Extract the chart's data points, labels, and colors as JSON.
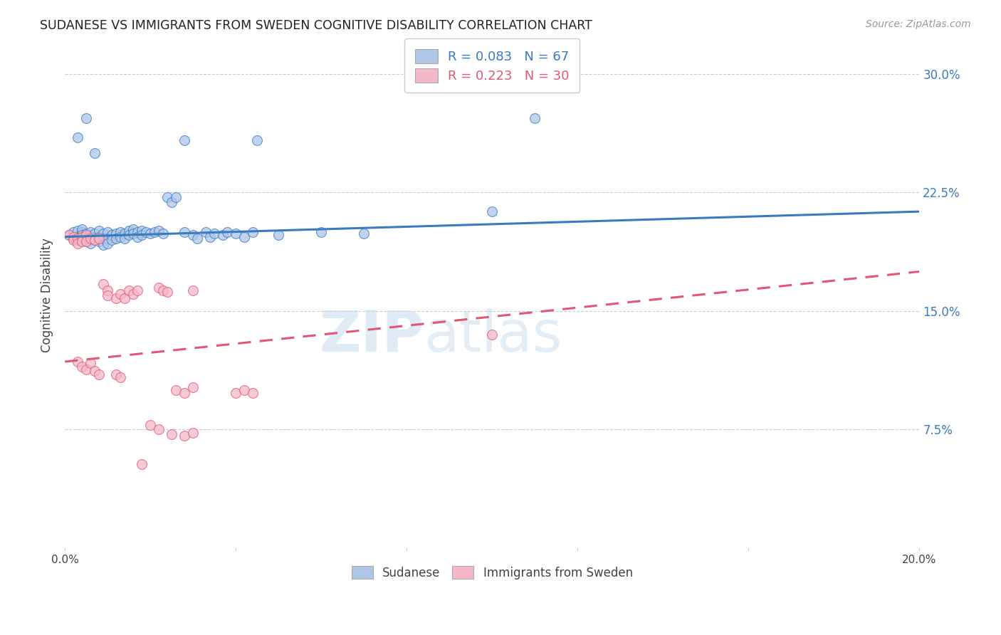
{
  "title": "SUDANESE VS IMMIGRANTS FROM SWEDEN COGNITIVE DISABILITY CORRELATION CHART",
  "source": "Source: ZipAtlas.com",
  "ylabel": "Cognitive Disability",
  "x_min": 0.0,
  "x_max": 0.2,
  "y_min": 0.0,
  "y_max": 0.32,
  "y_ticks": [
    0.075,
    0.15,
    0.225,
    0.3
  ],
  "y_tick_labels": [
    "7.5%",
    "15.0%",
    "22.5%",
    "30.0%"
  ],
  "x_ticks": [
    0.0,
    0.04,
    0.08,
    0.12,
    0.16,
    0.2
  ],
  "x_tick_labels": [
    "0.0%",
    "",
    "",
    "",
    "",
    "20.0%"
  ],
  "legend_label1": "Sudanese",
  "legend_label2": "Immigrants from Sweden",
  "color_blue": "#aec6e8",
  "color_pink": "#f5b8c8",
  "line_blue": "#3a7abf",
  "line_pink": "#e05878",
  "watermark_zip": "ZIP",
  "watermark_atlas": "atlas",
  "blue_scatter": [
    [
      0.001,
      0.198
    ],
    [
      0.002,
      0.2
    ],
    [
      0.002,
      0.196
    ],
    [
      0.003,
      0.201
    ],
    [
      0.003,
      0.197
    ],
    [
      0.003,
      0.195
    ],
    [
      0.004,
      0.2
    ],
    [
      0.004,
      0.202
    ],
    [
      0.004,
      0.198
    ],
    [
      0.005,
      0.196
    ],
    [
      0.005,
      0.199
    ],
    [
      0.005,
      0.194
    ],
    [
      0.006,
      0.2
    ],
    [
      0.006,
      0.197
    ],
    [
      0.006,
      0.193
    ],
    [
      0.007,
      0.199
    ],
    [
      0.007,
      0.195
    ],
    [
      0.008,
      0.201
    ],
    [
      0.008,
      0.197
    ],
    [
      0.008,
      0.194
    ],
    [
      0.009,
      0.199
    ],
    [
      0.009,
      0.196
    ],
    [
      0.009,
      0.192
    ],
    [
      0.01,
      0.2
    ],
    [
      0.01,
      0.196
    ],
    [
      0.01,
      0.193
    ],
    [
      0.011,
      0.198
    ],
    [
      0.011,
      0.195
    ],
    [
      0.012,
      0.199
    ],
    [
      0.012,
      0.196
    ],
    [
      0.013,
      0.2
    ],
    [
      0.013,
      0.197
    ],
    [
      0.014,
      0.199
    ],
    [
      0.014,
      0.196
    ],
    [
      0.015,
      0.201
    ],
    [
      0.015,
      0.198
    ],
    [
      0.016,
      0.202
    ],
    [
      0.016,
      0.199
    ],
    [
      0.017,
      0.2
    ],
    [
      0.017,
      0.197
    ],
    [
      0.018,
      0.201
    ],
    [
      0.018,
      0.198
    ],
    [
      0.019,
      0.2
    ],
    [
      0.02,
      0.199
    ],
    [
      0.021,
      0.2
    ],
    [
      0.022,
      0.201
    ],
    [
      0.023,
      0.199
    ],
    [
      0.024,
      0.222
    ],
    [
      0.025,
      0.219
    ],
    [
      0.026,
      0.222
    ],
    [
      0.028,
      0.2
    ],
    [
      0.03,
      0.198
    ],
    [
      0.031,
      0.196
    ],
    [
      0.033,
      0.2
    ],
    [
      0.034,
      0.197
    ],
    [
      0.035,
      0.199
    ],
    [
      0.037,
      0.198
    ],
    [
      0.038,
      0.2
    ],
    [
      0.04,
      0.199
    ],
    [
      0.042,
      0.197
    ],
    [
      0.044,
      0.2
    ],
    [
      0.05,
      0.198
    ],
    [
      0.06,
      0.2
    ],
    [
      0.07,
      0.199
    ],
    [
      0.1,
      0.213
    ],
    [
      0.003,
      0.26
    ],
    [
      0.005,
      0.272
    ],
    [
      0.007,
      0.25
    ],
    [
      0.028,
      0.258
    ],
    [
      0.045,
      0.258
    ],
    [
      0.11,
      0.272
    ]
  ],
  "pink_scatter": [
    [
      0.001,
      0.198
    ],
    [
      0.002,
      0.197
    ],
    [
      0.002,
      0.195
    ],
    [
      0.003,
      0.196
    ],
    [
      0.003,
      0.193
    ],
    [
      0.004,
      0.197
    ],
    [
      0.004,
      0.194
    ],
    [
      0.005,
      0.198
    ],
    [
      0.005,
      0.194
    ],
    [
      0.006,
      0.196
    ],
    [
      0.007,
      0.195
    ],
    [
      0.008,
      0.196
    ],
    [
      0.009,
      0.167
    ],
    [
      0.01,
      0.163
    ],
    [
      0.01,
      0.16
    ],
    [
      0.012,
      0.158
    ],
    [
      0.013,
      0.161
    ],
    [
      0.014,
      0.158
    ],
    [
      0.015,
      0.163
    ],
    [
      0.016,
      0.161
    ],
    [
      0.017,
      0.163
    ],
    [
      0.022,
      0.165
    ],
    [
      0.023,
      0.163
    ],
    [
      0.024,
      0.162
    ],
    [
      0.026,
      0.1
    ],
    [
      0.028,
      0.098
    ],
    [
      0.03,
      0.102
    ],
    [
      0.03,
      0.163
    ],
    [
      0.04,
      0.098
    ],
    [
      0.042,
      0.1
    ],
    [
      0.044,
      0.098
    ],
    [
      0.1,
      0.135
    ],
    [
      0.003,
      0.118
    ],
    [
      0.004,
      0.115
    ],
    [
      0.005,
      0.113
    ],
    [
      0.006,
      0.117
    ],
    [
      0.007,
      0.112
    ],
    [
      0.008,
      0.11
    ],
    [
      0.012,
      0.11
    ],
    [
      0.013,
      0.108
    ],
    [
      0.02,
      0.078
    ],
    [
      0.022,
      0.075
    ],
    [
      0.025,
      0.072
    ],
    [
      0.028,
      0.071
    ],
    [
      0.03,
      0.073
    ],
    [
      0.018,
      0.053
    ]
  ],
  "blue_trend_x": [
    0.0,
    0.2
  ],
  "blue_trend_y": [
    0.197,
    0.213
  ],
  "pink_trend_x": [
    0.0,
    0.2
  ],
  "pink_trend_y": [
    0.118,
    0.175
  ]
}
